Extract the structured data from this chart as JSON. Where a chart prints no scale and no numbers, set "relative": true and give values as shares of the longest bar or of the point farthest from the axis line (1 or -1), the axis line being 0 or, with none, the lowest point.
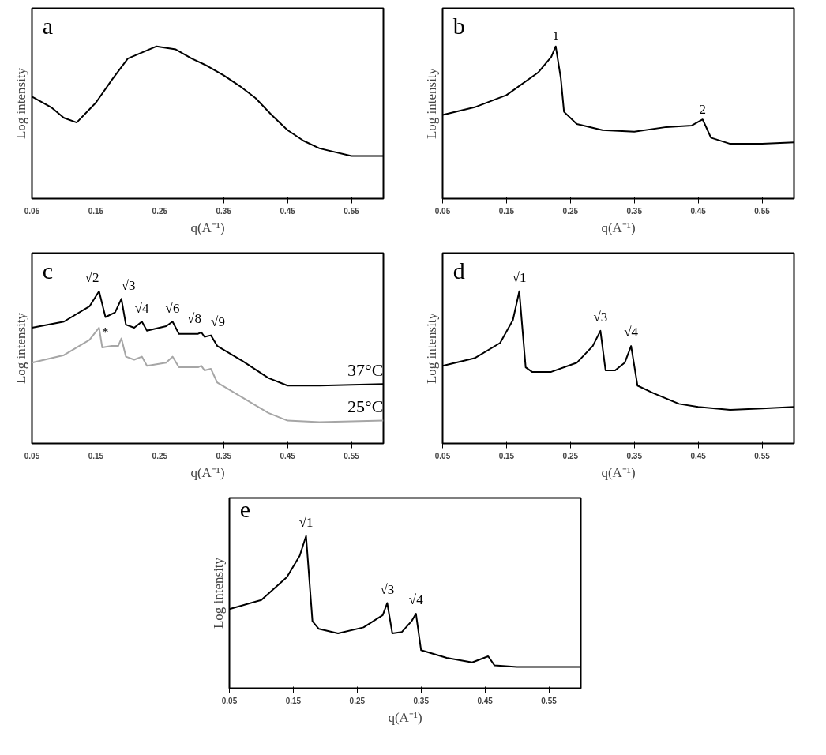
{
  "chart_data": [
    {
      "type": "line",
      "relative": true,
      "xlabel": "q(A⁻¹)",
      "ylabel": "Log intensity",
      "xlim": [
        0.05,
        0.6
      ],
      "xticks": [
        0.05,
        0.15,
        0.25,
        0.35,
        0.45,
        0.55
      ],
      "annotations": [
        "a"
      ],
      "color": "#000000",
      "x": [
        0.05,
        0.08,
        0.1,
        0.12,
        0.15,
        0.175,
        0.2,
        0.245,
        0.275,
        0.3,
        0.325,
        0.35,
        0.375,
        0.4,
        0.425,
        0.45,
        0.475,
        0.5,
        0.55,
        0.6
      ],
      "values": [
        0.67,
        0.6,
        0.53,
        0.5,
        0.63,
        0.78,
        0.92,
        1,
        0.98,
        0.92,
        0.87,
        0.81,
        0.74,
        0.66,
        0.55,
        0.45,
        0.38,
        0.33,
        0.28,
        0.28
      ]
    },
    {
      "type": "line",
      "relative": true,
      "xlabel": "q(A⁻¹)",
      "ylabel": "Log intensity",
      "xlim": [
        0.05,
        0.6
      ],
      "xticks": [
        0.05,
        0.15,
        0.25,
        0.35,
        0.45,
        0.55
      ],
      "annotations": [
        "b",
        {
          "text": "1",
          "x": 0.227,
          "y": 1
        },
        {
          "text": "2",
          "x": 0.457,
          "y": 0.52
        }
      ],
      "color": "#000000",
      "x": [
        0.05,
        0.1,
        0.15,
        0.2,
        0.22,
        0.227,
        0.235,
        0.24,
        0.26,
        0.3,
        0.35,
        0.4,
        0.44,
        0.457,
        0.47,
        0.5,
        0.55,
        0.6
      ],
      "values": [
        0.55,
        0.6,
        0.68,
        0.83,
        0.93,
        1,
        0.79,
        0.57,
        0.49,
        0.45,
        0.44,
        0.47,
        0.48,
        0.52,
        0.4,
        0.36,
        0.36,
        0.37
      ]
    },
    {
      "type": "line",
      "relative": true,
      "xlabel": "q(A⁻¹)",
      "ylabel": "Log intensity",
      "xlim": [
        0.05,
        0.6
      ],
      "xticks": [
        0.05,
        0.15,
        0.25,
        0.35,
        0.45,
        0.55
      ],
      "annotations": [
        "c",
        {
          "text": "√2",
          "x": 0.155,
          "y": 1
        },
        {
          "text": "√3",
          "x": 0.19,
          "y": 0.95
        },
        {
          "text": "√4",
          "x": 0.222,
          "y": 0.8
        },
        {
          "text": "√6",
          "x": 0.27,
          "y": 0.8
        },
        {
          "text": "√8",
          "x": 0.315,
          "y": 0.73
        },
        {
          "text": "√9",
          "x": 0.33,
          "y": 0.71
        },
        {
          "text": "*",
          "x": 0.17,
          "y": 0.64
        }
      ],
      "series": [
        {
          "name": "37°C",
          "color": "#000000",
          "x": [
            0.05,
            0.1,
            0.14,
            0.155,
            0.165,
            0.18,
            0.19,
            0.197,
            0.21,
            0.222,
            0.23,
            0.26,
            0.27,
            0.28,
            0.31,
            0.315,
            0.32,
            0.33,
            0.34,
            0.38,
            0.42,
            0.45,
            0.5,
            0.6
          ],
          "values": [
            0.76,
            0.8,
            0.9,
            1,
            0.83,
            0.86,
            0.95,
            0.78,
            0.76,
            0.8,
            0.74,
            0.77,
            0.8,
            0.72,
            0.72,
            0.73,
            0.7,
            0.71,
            0.64,
            0.54,
            0.43,
            0.38,
            0.38,
            0.39
          ]
        },
        {
          "name": "25°C",
          "color": "#a6a6a6",
          "x": [
            0.05,
            0.1,
            0.14,
            0.155,
            0.16,
            0.175,
            0.185,
            0.19,
            0.197,
            0.21,
            0.222,
            0.23,
            0.26,
            0.27,
            0.28,
            0.31,
            0.315,
            0.32,
            0.33,
            0.34,
            0.38,
            0.42,
            0.45,
            0.5,
            0.6
          ],
          "values": [
            0.53,
            0.58,
            0.68,
            0.76,
            0.63,
            0.64,
            0.64,
            0.69,
            0.57,
            0.55,
            0.57,
            0.51,
            0.53,
            0.57,
            0.5,
            0.5,
            0.51,
            0.48,
            0.49,
            0.4,
            0.3,
            0.2,
            0.15,
            0.14,
            0.15
          ]
        }
      ]
    },
    {
      "type": "line",
      "relative": true,
      "xlabel": "q(A⁻¹)",
      "ylabel": "Log intensity",
      "xlim": [
        0.05,
        0.6
      ],
      "xticks": [
        0.05,
        0.15,
        0.25,
        0.35,
        0.45,
        0.55
      ],
      "annotations": [
        "d",
        {
          "text": "√1",
          "x": 0.17,
          "y": 1
        },
        {
          "text": "√3",
          "x": 0.297,
          "y": 0.74
        },
        {
          "text": "√4",
          "x": 0.345,
          "y": 0.64
        }
      ],
      "color": "#000000",
      "x": [
        0.05,
        0.1,
        0.14,
        0.16,
        0.17,
        0.18,
        0.19,
        0.22,
        0.26,
        0.285,
        0.297,
        0.305,
        0.32,
        0.335,
        0.345,
        0.355,
        0.38,
        0.42,
        0.45,
        0.5,
        0.55,
        0.6
      ],
      "values": [
        0.51,
        0.56,
        0.66,
        0.81,
        1,
        0.5,
        0.47,
        0.47,
        0.53,
        0.64,
        0.74,
        0.48,
        0.48,
        0.53,
        0.64,
        0.38,
        0.33,
        0.26,
        0.24,
        0.22,
        0.23,
        0.24
      ]
    },
    {
      "type": "line",
      "relative": true,
      "xlabel": "q(A⁻¹)",
      "ylabel": "Log intensity",
      "xlim": [
        0.05,
        0.6
      ],
      "xticks": [
        0.05,
        0.15,
        0.25,
        0.35,
        0.45,
        0.55
      ],
      "annotations": [
        "e",
        {
          "text": "√1",
          "x": 0.17,
          "y": 1
        },
        {
          "text": "√3",
          "x": 0.297,
          "y": 0.56
        },
        {
          "text": "√4",
          "x": 0.342,
          "y": 0.49
        }
      ],
      "color": "#000000",
      "x": [
        0.05,
        0.1,
        0.14,
        0.16,
        0.17,
        0.18,
        0.19,
        0.22,
        0.26,
        0.29,
        0.297,
        0.305,
        0.32,
        0.335,
        0.342,
        0.35,
        0.39,
        0.43,
        0.455,
        0.465,
        0.5,
        0.6
      ],
      "values": [
        0.52,
        0.58,
        0.73,
        0.87,
        1,
        0.44,
        0.39,
        0.36,
        0.4,
        0.48,
        0.56,
        0.36,
        0.37,
        0.44,
        0.49,
        0.25,
        0.2,
        0.17,
        0.21,
        0.15,
        0.14,
        0.14
      ]
    }
  ]
}
